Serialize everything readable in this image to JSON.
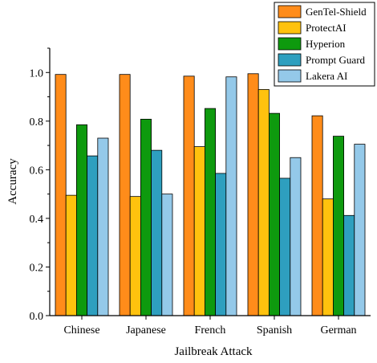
{
  "chart_data": {
    "type": "bar",
    "xlabel": "Jailbreak Attack",
    "ylabel": "Accuracy",
    "ylim": [
      0,
      1.1
    ],
    "yticks": [
      "0.0",
      "0.2",
      "0.4",
      "0.6",
      "0.8",
      "1.0"
    ],
    "categories": [
      "Chinese",
      "Japanese",
      "French",
      "Spanish",
      "German"
    ],
    "legend_position": "top-right",
    "grid": false,
    "series": [
      {
        "name": "GenTel-Shield",
        "color": "#FF8C1A",
        "values": [
          0.992,
          0.992,
          0.985,
          0.995,
          0.822
        ]
      },
      {
        "name": "ProtectAI",
        "color": "#FFC20E",
        "values": [
          0.495,
          0.49,
          0.695,
          0.93,
          0.48
        ]
      },
      {
        "name": "Hyperion",
        "color": "#0E9A0E",
        "values": [
          0.785,
          0.808,
          0.852,
          0.832,
          0.738
        ]
      },
      {
        "name": "Prompt Guard",
        "color": "#2E9FBF",
        "values": [
          0.657,
          0.68,
          0.585,
          0.565,
          0.412
        ]
      },
      {
        "name": "Lakera AI",
        "color": "#94C9E9",
        "values": [
          0.73,
          0.5,
          0.982,
          0.65,
          0.705
        ]
      }
    ]
  }
}
